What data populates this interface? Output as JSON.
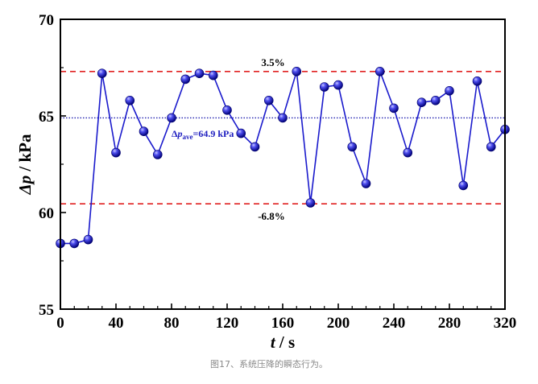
{
  "caption": "图17、系统压降的瞬态行为。",
  "colors": {
    "series": "#1a1acc",
    "marker_light": "#8a8aff",
    "marker_dark": "#0000a0",
    "ref_dashed": "#e02020",
    "avg_dotted": "#2020b0"
  },
  "chart_data": {
    "type": "line",
    "x": [
      0,
      10,
      20,
      30,
      40,
      50,
      60,
      70,
      80,
      90,
      100,
      110,
      120,
      130,
      140,
      150,
      160,
      170,
      180,
      190,
      200,
      210,
      220,
      230,
      240,
      250,
      260,
      270,
      280,
      290,
      300,
      310,
      320
    ],
    "series": [
      {
        "values": [
          58.4,
          58.4,
          58.6,
          67.2,
          63.1,
          65.8,
          64.2,
          63.0,
          64.9,
          66.9,
          67.2,
          67.1,
          65.3,
          64.1,
          63.4,
          65.8,
          64.9,
          67.3,
          60.5,
          66.5,
          66.6,
          63.4,
          61.5,
          67.3,
          65.4,
          63.1,
          65.7,
          65.8,
          66.3,
          61.4,
          66.8,
          63.4,
          64.3
        ]
      }
    ],
    "xlabel_var": "t",
    "xlabel_unit": " / s",
    "ylabel_var": "Δp",
    "ylabel_unit": " / kPa",
    "xlim": [
      0,
      320
    ],
    "ylim": [
      55,
      70
    ],
    "xticks": [
      0,
      40,
      80,
      120,
      160,
      200,
      240,
      280,
      320
    ],
    "yticks": [
      55,
      60,
      65,
      70
    ],
    "reference_lines": [
      {
        "y": 67.3,
        "style": "dashed",
        "label": "3.5%"
      },
      {
        "y": 60.45,
        "style": "dashed",
        "label": "-6.8%"
      },
      {
        "y": 64.9,
        "style": "dotted"
      }
    ],
    "avg_label": {
      "prefix": "Δ",
      "var": "p",
      "sub": "ave",
      "suffix": "=64.9 kPa"
    },
    "grid": false
  }
}
